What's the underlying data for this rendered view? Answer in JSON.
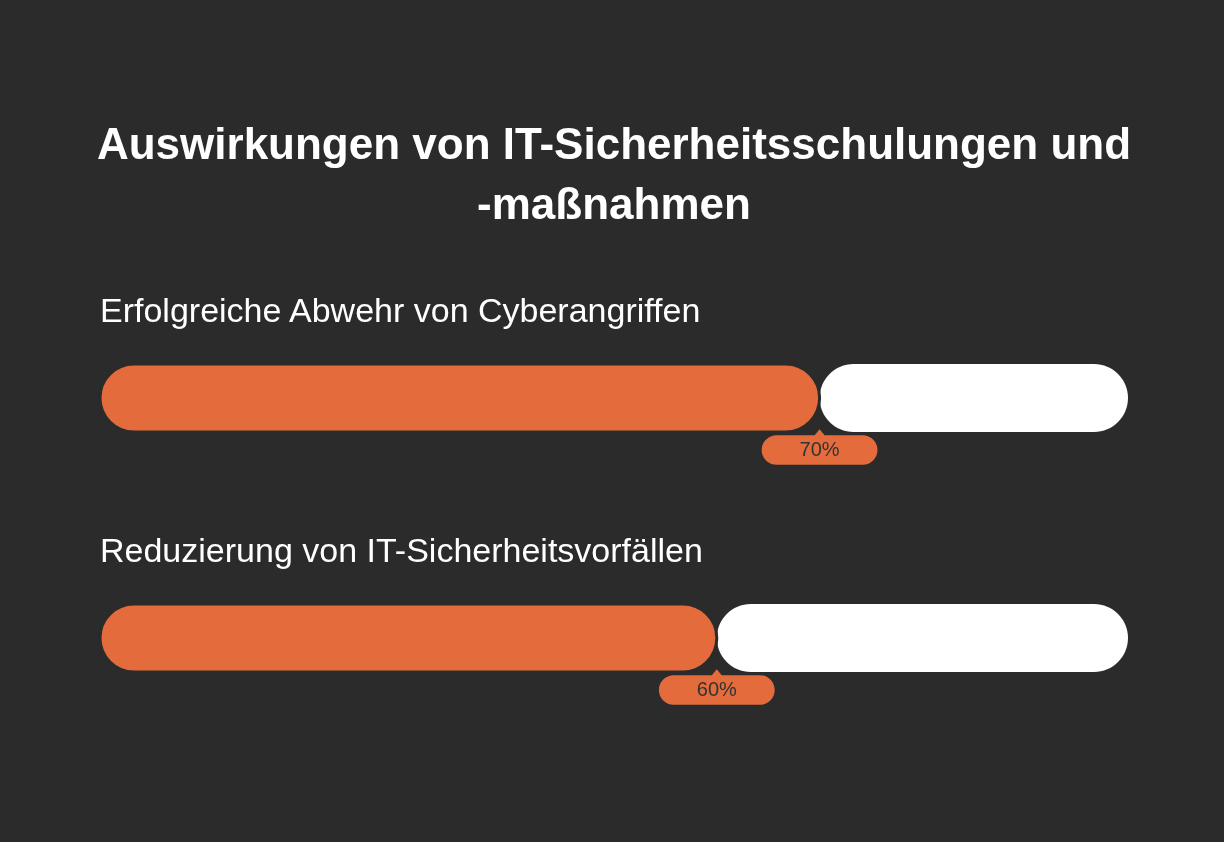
{
  "chart_data": {
    "type": "bar",
    "title": "Auswirkungen von IT-Sicherheitsschulungen und -maßnahmen",
    "orientation": "horizontal",
    "stacked": true,
    "categories": [
      "Erfolgreiche Abwehr von Cyberangriffen",
      "Reduzierung von IT-Sicherheitsvorfällen"
    ],
    "series": [
      {
        "color": "#e46c3c",
        "values": [
          70,
          60
        ],
        "value_labels": [
          "70%",
          "60%"
        ]
      },
      {
        "color": "#ffffff",
        "values": [
          30,
          40
        ]
      }
    ],
    "tick_labels": false
  }
}
